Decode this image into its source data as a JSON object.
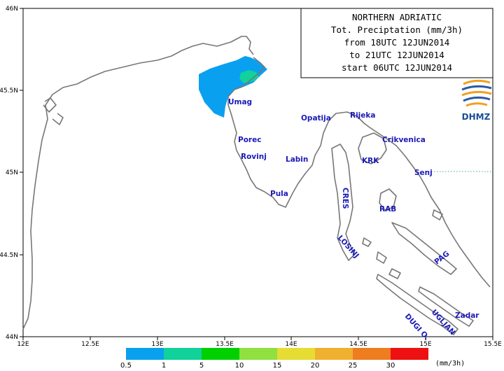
{
  "title_lines": [
    "NORTHERN ADRIATIC",
    "Tot. Preciptation (mm/3h)",
    "from 18UTC 12JUN2014",
    "to 21UTC 12JUN2014",
    "start 06UTC 12JUN2014"
  ],
  "logo": {
    "name": "DHMZ",
    "colors": [
      "#f0a020",
      "#2a5aa8"
    ]
  },
  "axes": {
    "lon_ticks": [
      "12E",
      "12.5E",
      "13E",
      "13.5E",
      "14E",
      "14.5E",
      "15E",
      "15.5E"
    ],
    "lat_ticks": [
      "46N",
      "45.5N",
      "45N",
      "44.5N",
      "44N"
    ]
  },
  "places": [
    {
      "name": "Umag"
    },
    {
      "name": "Porec"
    },
    {
      "name": "Rovinj"
    },
    {
      "name": "Pula"
    },
    {
      "name": "Labin"
    },
    {
      "name": "Opatija"
    },
    {
      "name": "Rijeka"
    },
    {
      "name": "Crikvenica"
    },
    {
      "name": "KRK"
    },
    {
      "name": "Senj"
    },
    {
      "name": "CRES"
    },
    {
      "name": "RAB"
    },
    {
      "name": "LOSINJ"
    },
    {
      "name": "PAG"
    },
    {
      "name": "Zadar"
    },
    {
      "name": "UGLJAN"
    },
    {
      "name": "DUGI O."
    }
  ],
  "legend": {
    "colors": [
      "#0aa0f0",
      "#10d29a",
      "#00d000",
      "#90e040",
      "#e6dc33",
      "#f0b030",
      "#ee7d20",
      "#ee1111"
    ],
    "bounds": [
      "0.5",
      "1",
      "5",
      "10",
      "15",
      "20",
      "25",
      "30"
    ],
    "unit": "(mm/3h)"
  },
  "precip_areas": [
    {
      "class": "0.5-1",
      "color": "#0aa0f0"
    },
    {
      "class": "1-5",
      "color": "#10d29a"
    }
  ]
}
